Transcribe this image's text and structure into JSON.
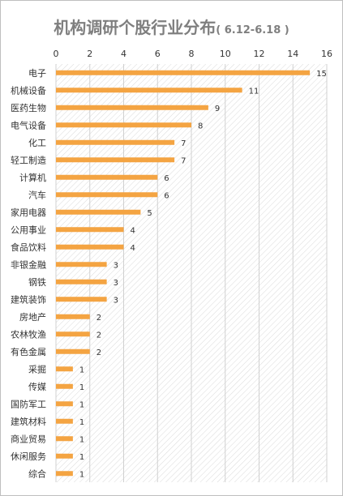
{
  "chart_data": {
    "type": "bar",
    "orientation": "horizontal",
    "title": "机构调研个股行业分布",
    "subtitle": "( 6.12-6.18 )",
    "xlabel": "",
    "ylabel": "",
    "xlim": [
      0,
      16
    ],
    "ticks": [
      0,
      2,
      4,
      6,
      8,
      10,
      12,
      14,
      16
    ],
    "axis_position": "top",
    "grid": true,
    "legend": "none",
    "bar_color": "#f4a442",
    "categories": [
      "电子",
      "机械设备",
      "医药生物",
      "电气设备",
      "化工",
      "轻工制造",
      "计算机",
      "汽车",
      "家用电器",
      "公用事业",
      "食品饮料",
      "非银金融",
      "钢铁",
      "建筑装饰",
      "房地产",
      "农林牧渔",
      "有色金属",
      "采掘",
      "传媒",
      "国防军工",
      "建筑材料",
      "商业贸易",
      "休闲服务",
      "综合"
    ],
    "values": [
      15,
      11,
      9,
      8,
      7,
      7,
      6,
      6,
      5,
      4,
      4,
      3,
      3,
      3,
      2,
      2,
      2,
      1,
      1,
      1,
      1,
      1,
      1,
      1
    ]
  }
}
